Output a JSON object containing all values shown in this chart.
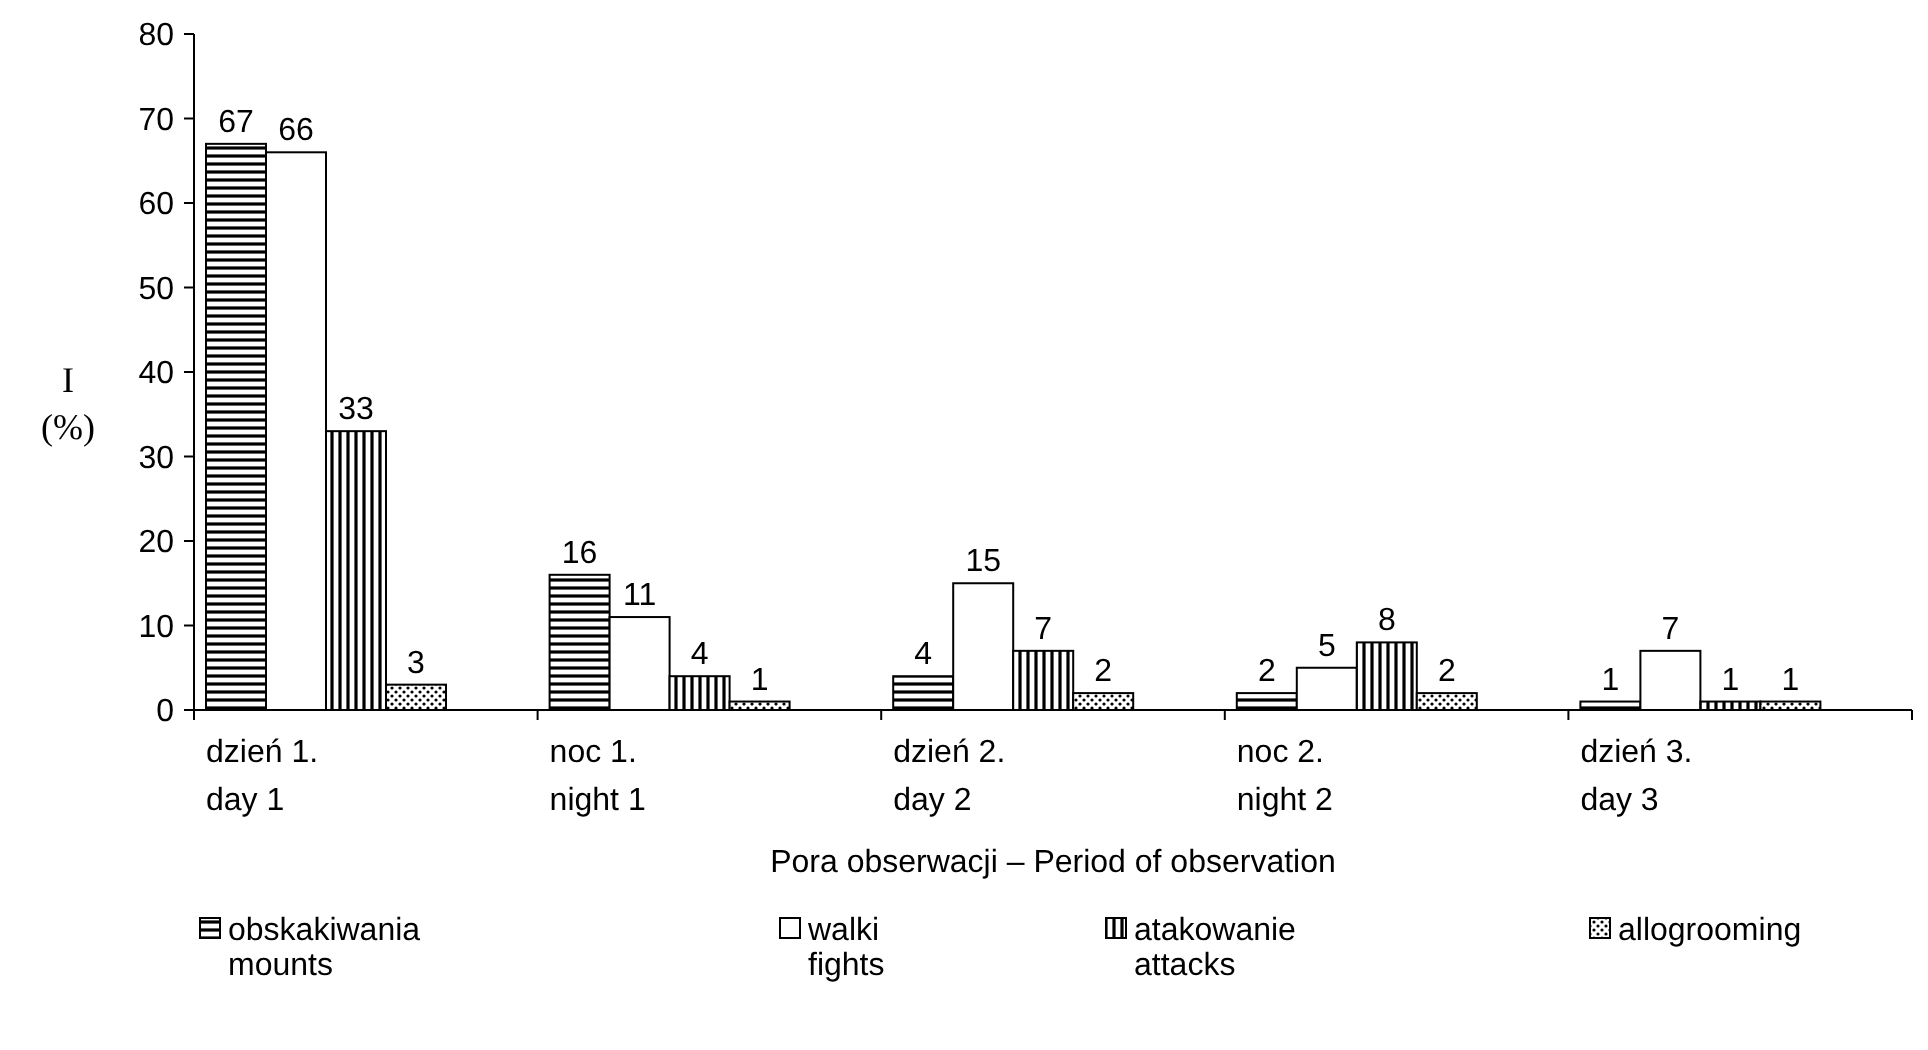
{
  "chart_data": {
    "type": "bar",
    "xlabel": "Pora obserwacji – Period of observation",
    "ylabel": "I\n(%)",
    "categories": [
      "dzień 1.\nday 1",
      "noc 1.\nnight 1",
      "dzień 2.\nday 2",
      "noc 2.\nnight 2",
      "dzień 3.\nday 3"
    ],
    "series": [
      {
        "name": "obskakiwania\nmounts",
        "color": "#000000",
        "values": [
          67,
          16,
          4,
          2,
          1
        ]
      },
      {
        "name": "walki\nfights",
        "color": "#000000",
        "values": [
          66,
          11,
          15,
          5,
          7
        ]
      },
      {
        "name": "atakowanie\nattacks",
        "color": "#000000",
        "values": [
          33,
          4,
          7,
          8,
          1
        ]
      },
      {
        "name": "allogrooming",
        "color": "#000000",
        "values": [
          3,
          1,
          2,
          2,
          1
        ]
      }
    ],
    "ylim": [
      0,
      80
    ],
    "yticks": [
      0,
      10,
      20,
      30,
      40,
      50,
      60,
      70,
      80
    ],
    "data_labels": true,
    "grid": false,
    "legend": "bottom"
  }
}
